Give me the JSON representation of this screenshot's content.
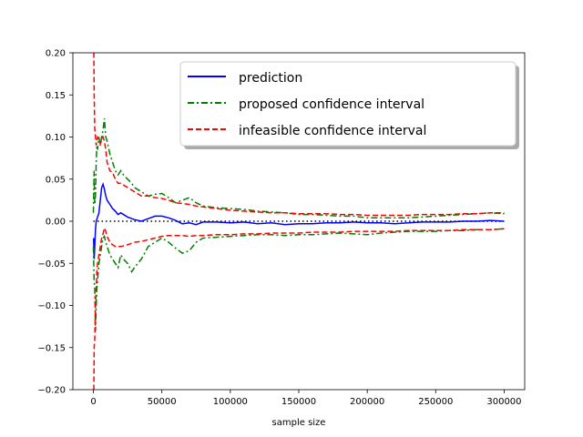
{
  "chart_data": {
    "type": "line",
    "xlabel": "sample size",
    "ylabel": "",
    "title": "",
    "xlim": [
      -15000,
      315000
    ],
    "ylim": [
      -0.2,
      0.2
    ],
    "xticks": [
      0,
      50000,
      100000,
      150000,
      200000,
      250000,
      300000
    ],
    "yticks": [
      -0.2,
      -0.15,
      -0.1,
      -0.05,
      0.0,
      0.05,
      0.1,
      0.15,
      0.2
    ],
    "xtick_labels": [
      "0",
      "50000",
      "100000",
      "150000",
      "200000",
      "250000",
      "300000"
    ],
    "ytick_labels": [
      "−0.20",
      "−0.15",
      "−0.10",
      "−0.05",
      "0.00",
      "0.05",
      "0.10",
      "0.15",
      "0.20"
    ],
    "grid": false,
    "legend_position": "top-right",
    "reference_line": {
      "y": 0,
      "color": "#000000",
      "style": "dotted"
    },
    "series": [
      {
        "name": "prediction",
        "color": "#0000ff",
        "style": "solid",
        "x": [
          200,
          600,
          1000,
          1500,
          2000,
          3000,
          4000,
          5000,
          6000,
          7000,
          8000,
          9000,
          10000,
          12000,
          14000,
          16000,
          18000,
          20000,
          25000,
          30000,
          35000,
          40000,
          45000,
          50000,
          55000,
          60000,
          65000,
          70000,
          75000,
          80000,
          90000,
          100000,
          110000,
          120000,
          130000,
          140000,
          150000,
          160000,
          170000,
          180000,
          190000,
          200000,
          210000,
          220000,
          230000,
          240000,
          250000,
          260000,
          270000,
          280000,
          290000,
          300000
        ],
        "y": [
          -0.02,
          -0.045,
          -0.03,
          -0.01,
          0.0,
          0.005,
          0.01,
          0.025,
          0.04,
          0.044,
          0.038,
          0.03,
          0.025,
          0.02,
          0.015,
          0.012,
          0.008,
          0.01,
          0.005,
          0.002,
          0.0,
          0.003,
          0.006,
          0.006,
          0.004,
          0.001,
          -0.003,
          -0.002,
          -0.004,
          -0.001,
          -0.001,
          -0.002,
          -0.001,
          -0.003,
          -0.002,
          -0.004,
          -0.003,
          -0.003,
          -0.002,
          -0.002,
          -0.001,
          -0.002,
          -0.002,
          -0.003,
          -0.002,
          -0.001,
          -0.001,
          -0.001,
          0.0,
          0.0,
          0.001,
          0.0
        ]
      },
      {
        "name": "proposed confidence interval",
        "color": "#008000",
        "style": "dashdot",
        "x": [
          0,
          500,
          1000,
          1500,
          2000,
          2500,
          3000,
          4000,
          5000,
          6000,
          7000,
          8000,
          9000,
          10000,
          12000,
          14000,
          16000,
          18000,
          20000,
          22000,
          25000,
          28000,
          30000,
          35000,
          40000,
          45000,
          50000,
          55000,
          60000,
          65000,
          70000,
          75000,
          80000,
          90000,
          100000,
          110000,
          120000,
          130000,
          140000,
          150000,
          160000,
          170000,
          180000,
          190000,
          200000,
          210000,
          220000,
          230000,
          240000,
          250000,
          260000,
          270000,
          280000,
          290000,
          300000
        ],
        "y": [
          0.01,
          0.06,
          0.02,
          0.03,
          0.07,
          0.09,
          0.085,
          0.1,
          0.09,
          0.1,
          0.108,
          0.122,
          0.1,
          0.095,
          0.08,
          0.07,
          0.06,
          0.055,
          0.06,
          0.055,
          0.05,
          0.045,
          0.04,
          0.035,
          0.03,
          0.032,
          0.033,
          0.028,
          0.022,
          0.025,
          0.028,
          0.022,
          0.018,
          0.016,
          0.015,
          0.014,
          0.012,
          0.011,
          0.01,
          0.008,
          0.008,
          0.007,
          0.006,
          0.006,
          0.004,
          0.004,
          0.004,
          0.004,
          0.005,
          0.006,
          0.007,
          0.008,
          0.009,
          0.01,
          0.009
        ],
        "y_lower": [
          -0.03,
          -0.07,
          -0.08,
          -0.13,
          -0.1,
          -0.08,
          -0.07,
          -0.05,
          -0.04,
          -0.03,
          -0.02,
          -0.018,
          -0.025,
          -0.03,
          -0.04,
          -0.045,
          -0.05,
          -0.055,
          -0.04,
          -0.045,
          -0.05,
          -0.06,
          -0.055,
          -0.045,
          -0.03,
          -0.025,
          -0.02,
          -0.025,
          -0.032,
          -0.038,
          -0.035,
          -0.025,
          -0.02,
          -0.019,
          -0.018,
          -0.017,
          -0.016,
          -0.016,
          -0.017,
          -0.016,
          -0.016,
          -0.015,
          -0.014,
          -0.015,
          -0.016,
          -0.014,
          -0.013,
          -0.012,
          -0.012,
          -0.012,
          -0.011,
          -0.011,
          -0.01,
          -0.01,
          -0.009
        ]
      },
      {
        "name": "infeasible confidence interval",
        "color": "#ff0000",
        "style": "dashed",
        "x": [
          0,
          300,
          600,
          1000,
          1500,
          2000,
          2500,
          3000,
          4000,
          5000,
          6000,
          7000,
          8000,
          9000,
          10000,
          12000,
          14000,
          16000,
          18000,
          20000,
          25000,
          30000,
          35000,
          40000,
          45000,
          50000,
          55000,
          60000,
          65000,
          70000,
          75000,
          80000,
          90000,
          100000,
          110000,
          120000,
          130000,
          140000,
          150000,
          160000,
          170000,
          180000,
          190000,
          200000,
          210000,
          220000,
          230000,
          240000,
          250000,
          260000,
          270000,
          280000,
          290000,
          300000
        ],
        "y": [
          0.2,
          0.2,
          0.15,
          0.11,
          0.1,
          0.09,
          0.095,
          0.1,
          0.098,
          0.092,
          0.096,
          0.1,
          0.095,
          0.085,
          0.07,
          0.06,
          0.058,
          0.05,
          0.045,
          0.045,
          0.04,
          0.035,
          0.03,
          0.03,
          0.028,
          0.027,
          0.025,
          0.022,
          0.021,
          0.02,
          0.018,
          0.017,
          0.015,
          0.013,
          0.012,
          0.011,
          0.01,
          0.01,
          0.009,
          0.009,
          0.009,
          0.008,
          0.008,
          0.007,
          0.007,
          0.007,
          0.007,
          0.008,
          0.008,
          0.008,
          0.009,
          0.009,
          0.01,
          0.01
        ],
        "y_lower": [
          -0.2,
          -0.2,
          -0.15,
          -0.14,
          -0.1,
          -0.08,
          -0.06,
          -0.05,
          -0.04,
          -0.03,
          -0.02,
          -0.015,
          -0.008,
          -0.012,
          -0.018,
          -0.025,
          -0.028,
          -0.03,
          -0.03,
          -0.03,
          -0.028,
          -0.025,
          -0.024,
          -0.022,
          -0.02,
          -0.018,
          -0.017,
          -0.017,
          -0.017,
          -0.018,
          -0.017,
          -0.017,
          -0.016,
          -0.016,
          -0.015,
          -0.015,
          -0.014,
          -0.014,
          -0.014,
          -0.013,
          -0.013,
          -0.013,
          -0.012,
          -0.012,
          -0.012,
          -0.012,
          -0.011,
          -0.011,
          -0.011,
          -0.011,
          -0.01,
          -0.01,
          -0.01,
          -0.009
        ]
      }
    ]
  }
}
